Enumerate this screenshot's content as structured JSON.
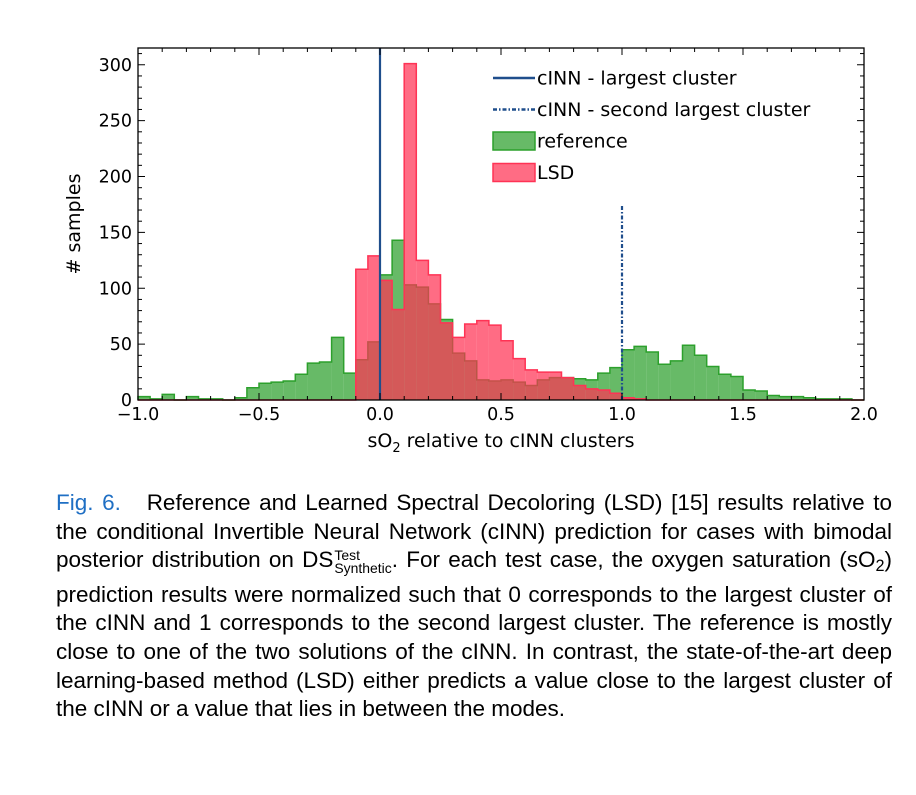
{
  "chart_data": {
    "type": "histogram",
    "xlabel_main": "sO",
    "xlabel_sub": "2",
    "xlabel_rest": " relative to cINN clusters",
    "ylabel": "# samples",
    "xlim": [
      -1.0,
      2.0
    ],
    "ylim": [
      0,
      315
    ],
    "xticks": [
      -1.0,
      -0.5,
      0.0,
      0.5,
      1.0,
      1.5,
      2.0
    ],
    "xtick_labels": [
      "−1.0",
      "−0.5",
      "0.0",
      "0.5",
      "1.0",
      "1.5",
      "2.0"
    ],
    "yticks": [
      0,
      50,
      100,
      150,
      200,
      250,
      300
    ],
    "ytick_labels": [
      "0",
      "50",
      "100",
      "150",
      "200",
      "250",
      "300"
    ],
    "bin_start": -1.0,
    "bin_width": 0.05,
    "series": [
      {
        "name": "reference",
        "color": "#2ca02c",
        "values": [
          3,
          1,
          5,
          0,
          3,
          1,
          1,
          0,
          2,
          11,
          15,
          16,
          17,
          23,
          33,
          34,
          56,
          24,
          36,
          52,
          112,
          143,
          103,
          101,
          86,
          72,
          42,
          35,
          18,
          17,
          18,
          16,
          13,
          18,
          20,
          20,
          19,
          18,
          24,
          29,
          45,
          48,
          43,
          32,
          35,
          49,
          40,
          30,
          23,
          21,
          9,
          8,
          4,
          3,
          3,
          2,
          1,
          1,
          1,
          0
        ]
      },
      {
        "name": "LSD",
        "color": "#ff3355",
        "values": [
          0,
          0,
          0,
          0,
          0,
          0,
          0,
          0,
          0,
          0,
          0,
          0,
          0,
          0,
          0,
          0,
          0,
          0,
          117,
          129,
          107,
          81,
          301,
          125,
          112,
          69,
          56,
          68,
          71,
          67,
          53,
          37,
          27,
          25,
          25,
          20,
          13,
          10,
          9,
          6,
          2,
          1,
          0,
          0,
          0,
          0,
          0,
          0,
          0,
          0,
          0,
          0,
          0,
          0,
          0,
          0,
          0,
          0,
          0,
          0
        ]
      }
    ],
    "vlines": [
      {
        "name": "cINN - largest cluster",
        "x": 0.0,
        "ymax": 315,
        "style": "solid",
        "color": "#1f4e8c"
      },
      {
        "name": "cINN - second largest cluster",
        "x": 1.0,
        "ymax": 174,
        "style": "dashdot",
        "color": "#1f4e8c"
      }
    ],
    "legend_position": "top-right"
  },
  "caption": {
    "fig_label": "Fig. 6.",
    "t1": "Reference and Learned Spectral Decoloring (LSD) [15] results relative to the conditional Invertible Neural Network (cINN) prediction for cases with bimodal posterior distribution on DS",
    "sup": "Test",
    "sub": "Synthetic",
    "t2": ". For each test case, the oxygen saturation (sO",
    "sub2": "2",
    "t3": ") prediction results were normalized such that 0 corresponds to the largest cluster of the cINN and 1 corresponds to the second largest cluster. The reference is mostly close to one of the two solutions of the cINN. In contrast, the state-of-the-art deep learning-based method (LSD) either predicts a value close to the largest cluster of the cINN or a value that lies in between the modes."
  }
}
